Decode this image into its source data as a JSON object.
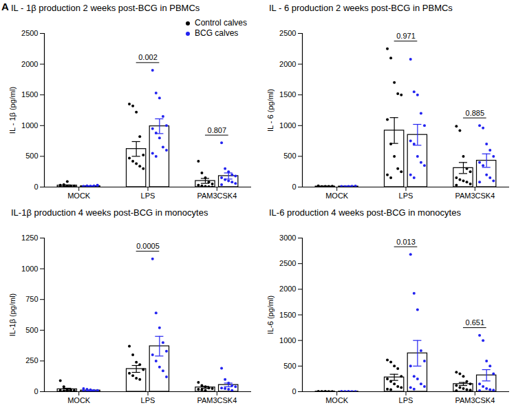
{
  "chart_data": [
    {
      "type": "bar",
      "panel_label": "A",
      "title": "IL - 1β production 2 weeks post-BCG in PBMCs",
      "y_label": "IL - 1β (pg/ml)",
      "categories": [
        "MOCK",
        "LPS",
        "PAM3CSK4"
      ],
      "series": [
        {
          "name": "Control calves",
          "color": "#000000",
          "values": [
            25,
            620,
            100
          ],
          "errors": [
            10,
            120,
            40
          ],
          "points": [
            [
              0,
              5,
              10,
              15,
              20,
              30,
              40,
              90,
              10,
              5
            ],
            [
              1350,
              1320,
              1220,
              820,
              520,
              470,
              420,
              380,
              340,
              300
            ],
            [
              420,
              230,
              150,
              80,
              50,
              30,
              20,
              10,
              5,
              0
            ]
          ]
        },
        {
          "name": "BCG calves",
          "color": "#2323f0",
          "values": [
            15,
            990,
            180
          ],
          "errors": [
            5,
            120,
            50
          ],
          "points": [
            [
              5,
              10,
              15,
              20,
              25,
              10,
              20,
              15,
              5,
              30,
              10
            ],
            [
              1900,
              1530,
              1450,
              1150,
              1000,
              950,
              880,
              800,
              650,
              600,
              550,
              500
            ],
            [
              720,
              300,
              250,
              200,
              180,
              150,
              120,
              100,
              80,
              60,
              40
            ]
          ]
        }
      ],
      "annotations": [
        {
          "category": "LPS",
          "text": "0.002"
        },
        {
          "category": "PAM3CSK4",
          "text": "0.807"
        }
      ],
      "ylim": [
        0,
        2500
      ],
      "yticks": [
        0,
        500,
        1000,
        1500,
        2000,
        2500
      ],
      "legend": "top-right"
    },
    {
      "type": "bar",
      "title": "IL - 6 production 2 weeks post-BCG in PBMCs",
      "y_label": "IL - 6 (pg/ml)",
      "categories": [
        "MOCK",
        "LPS",
        "PAM3CSK4"
      ],
      "series": [
        {
          "name": "Control calves",
          "color": "#000000",
          "values": [
            10,
            920,
            310
          ],
          "errors": [
            3,
            210,
            90
          ],
          "points": [
            [
              5,
              8,
              10,
              12,
              15,
              20,
              5,
              3
            ],
            [
              2250,
              2100,
              1700,
              1520,
              1500,
              1100,
              700,
              500,
              300,
              250,
              200,
              150
            ],
            [
              990,
              920,
              500,
              300,
              250,
              150,
              120,
              100,
              80,
              50,
              30
            ]
          ]
        },
        {
          "name": "BCG calves",
          "color": "#2323f0",
          "values": [
            10,
            850,
            430
          ],
          "errors": [
            3,
            170,
            110
          ],
          "points": [
            [
              4,
              6,
              10,
              14,
              18,
              12,
              8,
              5
            ],
            [
              2080,
              1550,
              1500,
              1200,
              1000,
              750,
              700,
              500,
              400,
              350,
              200,
              150
            ],
            [
              1000,
              960,
              700,
              600,
              500,
              400,
              350,
              200,
              150,
              100,
              80
            ]
          ]
        }
      ],
      "annotations": [
        {
          "category": "LPS",
          "text": "0.971"
        },
        {
          "category": "PAM3CSK4",
          "text": "0.885"
        }
      ],
      "ylim": [
        0,
        2500
      ],
      "yticks": [
        0,
        500,
        1000,
        1500,
        2000,
        2500
      ]
    },
    {
      "type": "bar",
      "title": "IL-1β production 4 weeks post-BCG in monocytes",
      "y_label": "IL-1β (pg/ml)",
      "categories": [
        "MOCK",
        "LPS",
        "PAM3CSK4"
      ],
      "series": [
        {
          "name": "Control calves",
          "color": "#000000",
          "values": [
            20,
            185,
            35
          ],
          "errors": [
            8,
            28,
            8
          ],
          "points": [
            [
              90,
              40,
              20,
              15,
              10,
              10,
              5,
              5,
              5
            ],
            [
              370,
              300,
              240,
              220,
              180,
              150,
              130,
              110,
              100
            ],
            [
              75,
              50,
              40,
              30,
              25,
              20,
              15,
              10
            ]
          ]
        },
        {
          "name": "BCG calves",
          "color": "#2323f0",
          "values": [
            10,
            370,
            55
          ],
          "errors": [
            3,
            80,
            15
          ],
          "points": [
            [
              25,
              20,
              15,
              10,
              10,
              8,
              5,
              5,
              5,
              5
            ],
            [
              1080,
              640,
              520,
              400,
              330,
              300,
              250,
              200,
              170,
              120
            ],
            [
              190,
              100,
              70,
              50,
              40,
              30,
              25,
              20,
              10
            ]
          ]
        }
      ],
      "annotations": [
        {
          "category": "LPS",
          "text": "0.0005"
        }
      ],
      "ylim": [
        0,
        1250
      ],
      "yticks": [
        0,
        250,
        500,
        750,
        1000,
        1250
      ]
    },
    {
      "type": "bar",
      "title": "IL-6 production 4 weeks post-BCG in monocytes",
      "y_label": "IL-6 (pg/ml)",
      "categories": [
        "MOCK",
        "LPS",
        "PAM3CSK4"
      ],
      "series": [
        {
          "name": "Control calves",
          "color": "#000000",
          "values": [
            3,
            280,
            150
          ],
          "errors": [
            1,
            60,
            30
          ],
          "points": [
            [
              2,
              3,
              4,
              5,
              3,
              2,
              1,
              4
            ],
            [
              620,
              580,
              500,
              450,
              300,
              250,
              200,
              150,
              100,
              80,
              50,
              40
            ],
            [
              380,
              350,
              300,
              200,
              150,
              120,
              80,
              60,
              40,
              30,
              20
            ]
          ]
        },
        {
          "name": "BCG calves",
          "color": "#2323f0",
          "values": [
            3,
            750,
            320
          ],
          "errors": [
            1,
            250,
            110
          ],
          "points": [
            [
              2,
              3,
              4,
              5,
              3,
              2,
              1,
              4
            ],
            [
              2680,
              1920,
              1600,
              800,
              600,
              500,
              300,
              250,
              150,
              100,
              80,
              50
            ],
            [
              1100,
              1000,
              600,
              500,
              350,
              150,
              100,
              60,
              40,
              30,
              20
            ]
          ]
        }
      ],
      "annotations": [
        {
          "category": "LPS",
          "text": "0.013"
        },
        {
          "category": "PAM3CSK4",
          "text": "0.651"
        }
      ],
      "ylim": [
        0,
        3000
      ],
      "yticks": [
        0,
        500,
        1000,
        1500,
        2000,
        2500,
        3000
      ]
    }
  ]
}
